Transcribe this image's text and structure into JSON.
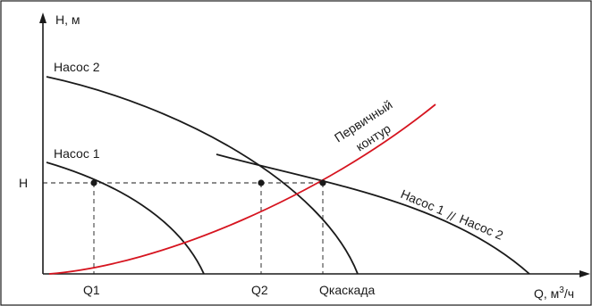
{
  "axes": {
    "y_label": "H, м",
    "x_label": "Q, м³/ч",
    "y_label_html": "H, м",
    "x_label_main": "Q, м",
    "x_label_sup": "3",
    "x_label_tail": "/ч"
  },
  "curves": {
    "pump2_label": "Насос 2",
    "pump1_label": "Насос 1",
    "primary_label_line1": "Первичный",
    "primary_label_line2": "контур",
    "cascade_label_part1": "Насос 1",
    "cascade_label_sep": "//",
    "cascade_label_part2": "Насос 2"
  },
  "marks": {
    "h_label": "H",
    "q1_label": "Q1",
    "q2_label": "Q2",
    "qcascade_label": "Qкаскада"
  },
  "colors": {
    "primary_circuit": "#d6141f",
    "pump_curves": "#1a1a1a"
  }
}
